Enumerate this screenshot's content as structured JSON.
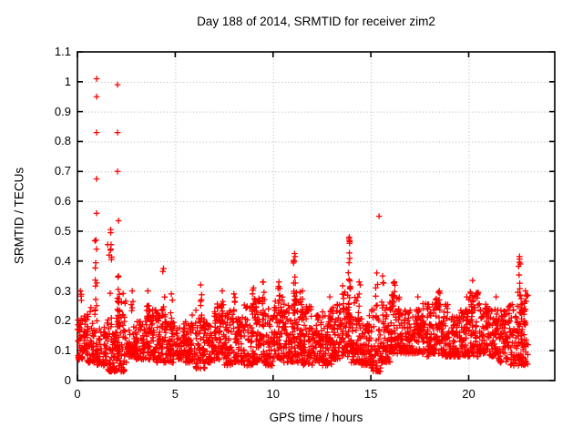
{
  "chart_data": {
    "type": "scatter",
    "title": "Day 188 of 2014, SRMTID for receiver zim2",
    "xlabel": "GPS time / hours",
    "ylabel": "SRMTID / TECUs",
    "xlim": [
      0,
      24.4
    ],
    "ylim": [
      0,
      1.1
    ],
    "xticks": [
      0,
      5,
      10,
      15,
      20
    ],
    "xtick_labels": [
      "0",
      "5",
      "10",
      "15",
      "20"
    ],
    "yticks": [
      0,
      0.1,
      0.2,
      0.3,
      0.4,
      0.5,
      0.6,
      0.7,
      0.8,
      0.9,
      1,
      1.1
    ],
    "ytick_labels": [
      "0",
      "0.1",
      "0.2",
      "0.3",
      "0.4",
      "0.5",
      "0.6",
      "0.7",
      "0.8",
      "0.9",
      "1",
      "1.1"
    ],
    "grid": "dotted",
    "legend": "none",
    "marker": "plus",
    "marker_color": "#ff0000",
    "marker_size_px": 7,
    "axis_color": "#000000",
    "grid_color": "#b4b4b4",
    "seed": 2014188,
    "data_end_hour": 23.05,
    "outliers": [
      [
        0.98,
        1.01
      ],
      [
        0.98,
        0.95
      ],
      [
        0.98,
        0.83
      ],
      [
        0.98,
        0.675
      ],
      [
        0.98,
        0.56
      ],
      [
        0.98,
        0.44
      ],
      [
        2.05,
        0.99
      ],
      [
        2.05,
        0.83
      ],
      [
        2.05,
        0.7
      ],
      [
        2.1,
        0.535
      ],
      [
        1.7,
        0.505
      ],
      [
        1.7,
        0.495
      ],
      [
        1.72,
        0.455
      ],
      [
        1.55,
        0.455
      ],
      [
        1.62,
        0.42
      ],
      [
        1.74,
        0.405
      ],
      [
        13.88,
        0.475
      ],
      [
        13.92,
        0.465
      ],
      [
        15.42,
        0.55
      ]
    ],
    "spike_columns": [
      [
        0.15,
        0.3,
        5
      ],
      [
        0.95,
        0.47,
        10
      ],
      [
        1.7,
        0.44,
        4
      ],
      [
        2.1,
        0.35,
        12
      ],
      [
        2.8,
        0.3,
        4
      ],
      [
        3.6,
        0.3,
        6
      ],
      [
        4.4,
        0.375,
        6
      ],
      [
        4.8,
        0.29,
        4
      ],
      [
        6.3,
        0.32,
        5
      ],
      [
        7.4,
        0.3,
        6
      ],
      [
        8.0,
        0.29,
        4
      ],
      [
        9.0,
        0.31,
        5
      ],
      [
        9.5,
        0.33,
        5
      ],
      [
        10.3,
        0.33,
        6
      ],
      [
        11.1,
        0.425,
        14
      ],
      [
        11.5,
        0.3,
        4
      ],
      [
        12.9,
        0.28,
        4
      ],
      [
        13.9,
        0.48,
        18
      ],
      [
        14.4,
        0.33,
        5
      ],
      [
        15.3,
        0.36,
        5
      ],
      [
        15.6,
        0.35,
        4
      ],
      [
        16.2,
        0.33,
        8
      ],
      [
        17.4,
        0.28,
        4
      ],
      [
        18.5,
        0.3,
        6
      ],
      [
        19.9,
        0.28,
        4
      ],
      [
        20.2,
        0.335,
        8
      ],
      [
        21.4,
        0.28,
        4
      ],
      [
        22.6,
        0.415,
        12
      ],
      [
        22.9,
        0.3,
        5
      ]
    ],
    "band_segments": [
      [
        0.0,
        0.5,
        0.07,
        0.22,
        60
      ],
      [
        0.5,
        1.0,
        0.06,
        0.26,
        60
      ],
      [
        1.0,
        1.5,
        0.05,
        0.18,
        55
      ],
      [
        1.5,
        2.0,
        0.03,
        0.22,
        60
      ],
      [
        2.0,
        2.5,
        0.03,
        0.3,
        70
      ],
      [
        2.5,
        3.0,
        0.08,
        0.18,
        55
      ],
      [
        3.0,
        3.5,
        0.07,
        0.2,
        55
      ],
      [
        3.5,
        4.0,
        0.07,
        0.24,
        60
      ],
      [
        4.0,
        4.5,
        0.06,
        0.24,
        60
      ],
      [
        4.5,
        5.0,
        0.06,
        0.2,
        55
      ],
      [
        5.0,
        5.5,
        0.07,
        0.19,
        55
      ],
      [
        5.5,
        6.0,
        0.06,
        0.22,
        55
      ],
      [
        6.0,
        6.5,
        0.04,
        0.24,
        60
      ],
      [
        6.5,
        7.0,
        0.06,
        0.2,
        55
      ],
      [
        7.0,
        7.5,
        0.07,
        0.26,
        65
      ],
      [
        7.5,
        8.0,
        0.05,
        0.24,
        60
      ],
      [
        8.0,
        8.5,
        0.06,
        0.22,
        60
      ],
      [
        8.5,
        9.0,
        0.05,
        0.26,
        60
      ],
      [
        9.0,
        9.5,
        0.06,
        0.28,
        65
      ],
      [
        9.5,
        10.0,
        0.05,
        0.24,
        60
      ],
      [
        10.0,
        10.5,
        0.07,
        0.28,
        65
      ],
      [
        10.5,
        11.0,
        0.06,
        0.26,
        65
      ],
      [
        11.0,
        11.5,
        0.06,
        0.3,
        70
      ],
      [
        11.5,
        12.0,
        0.05,
        0.25,
        60
      ],
      [
        12.0,
        12.5,
        0.06,
        0.22,
        60
      ],
      [
        12.5,
        13.0,
        0.05,
        0.24,
        60
      ],
      [
        13.0,
        13.5,
        0.07,
        0.26,
        65
      ],
      [
        13.5,
        14.0,
        0.08,
        0.32,
        70
      ],
      [
        14.0,
        14.5,
        0.06,
        0.28,
        65
      ],
      [
        14.5,
        15.0,
        0.05,
        0.22,
        60
      ],
      [
        15.0,
        15.5,
        0.03,
        0.24,
        55
      ],
      [
        15.5,
        16.0,
        0.06,
        0.28,
        60
      ],
      [
        16.0,
        16.5,
        0.09,
        0.3,
        65
      ],
      [
        16.5,
        17.0,
        0.09,
        0.24,
        60
      ],
      [
        17.0,
        17.5,
        0.09,
        0.24,
        60
      ],
      [
        17.5,
        18.0,
        0.08,
        0.26,
        60
      ],
      [
        18.0,
        18.5,
        0.09,
        0.28,
        65
      ],
      [
        18.5,
        19.0,
        0.08,
        0.26,
        60
      ],
      [
        19.0,
        19.5,
        0.08,
        0.22,
        58
      ],
      [
        19.5,
        20.0,
        0.08,
        0.24,
        58
      ],
      [
        20.0,
        20.5,
        0.08,
        0.3,
        65
      ],
      [
        20.5,
        21.0,
        0.09,
        0.26,
        62
      ],
      [
        21.0,
        21.5,
        0.08,
        0.24,
        60
      ],
      [
        21.5,
        22.0,
        0.06,
        0.24,
        60
      ],
      [
        22.0,
        22.5,
        0.05,
        0.26,
        60
      ],
      [
        22.5,
        23.05,
        0.05,
        0.3,
        70
      ]
    ]
  }
}
